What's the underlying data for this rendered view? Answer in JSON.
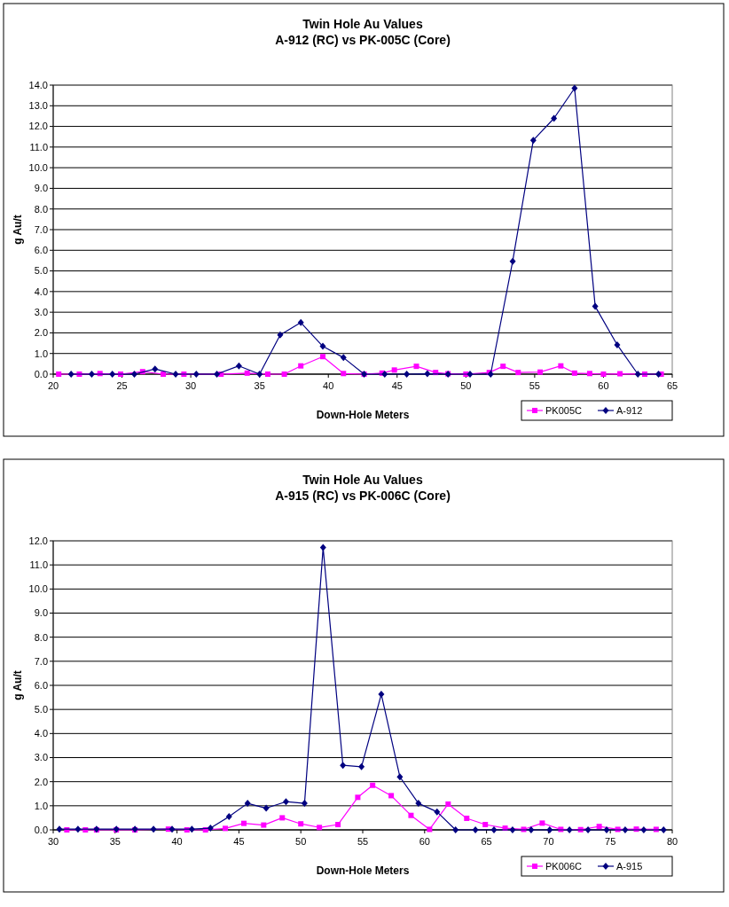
{
  "chart_data": [
    {
      "type": "line",
      "title": "Twin Hole Au Values",
      "subtitle": "A-912 (RC) vs PK-005C (Core)",
      "xlabel": "Down-Hole Meters",
      "ylabel": "g Au/t",
      "xlim": [
        20,
        65
      ],
      "xticks": [
        20,
        25,
        30,
        35,
        40,
        45,
        50,
        55,
        60,
        65
      ],
      "ylim": [
        0,
        14
      ],
      "yticks": [
        {
          "value": 0,
          "label": "0.0"
        },
        {
          "value": 1,
          "label": "1.0"
        },
        {
          "value": 2,
          "label": "2.0"
        },
        {
          "value": 3,
          "label": "3.0"
        },
        {
          "value": 4,
          "label": "4.0"
        },
        {
          "value": 5,
          "label": "5.0"
        },
        {
          "value": 6,
          "label": "6.0"
        },
        {
          "value": 7,
          "label": "7.0"
        },
        {
          "value": 8,
          "label": "8.0"
        },
        {
          "value": 9,
          "label": "9.0"
        },
        {
          "value": 10,
          "label": "10.0"
        },
        {
          "value": 11,
          "label": "11.0"
        },
        {
          "value": 12,
          "label": "12.0"
        },
        {
          "value": 13,
          "label": "13.0"
        },
        {
          "value": 14,
          "label": "14.0"
        }
      ],
      "grid": "y",
      "legend": "bottom right",
      "line_style": "solid",
      "series": [
        {
          "name": "PK005C",
          "color": "#ff00ff",
          "marker": "square",
          "x": [
            20.4,
            21.9,
            23.4,
            24.9,
            26.5,
            28.0,
            29.5,
            32.2,
            34.1,
            35.6,
            36.8,
            38.0,
            39.6,
            41.1,
            42.6,
            43.9,
            44.8,
            46.4,
            47.8,
            48.7,
            50.0,
            51.7,
            52.7,
            53.8,
            55.4,
            56.9,
            57.9,
            59.0,
            60.0,
            61.2,
            63.0,
            64.2
          ],
          "values": [
            0,
            0,
            0.03,
            0,
            0.12,
            0,
            0,
            0,
            0.05,
            0,
            0,
            0.4,
            0.85,
            0.03,
            0,
            0.05,
            0.2,
            0.38,
            0.08,
            0.02,
            0,
            0.08,
            0.38,
            0.08,
            0.1,
            0.4,
            0.05,
            0.03,
            0,
            0.02,
            0,
            0
          ]
        },
        {
          "name": "A-912",
          "color": "#000080",
          "marker": "diamond",
          "x": [
            21.3,
            22.8,
            24.3,
            25.9,
            27.4,
            28.9,
            30.4,
            31.9,
            33.5,
            35.0,
            36.5,
            38.0,
            39.6,
            41.1,
            42.6,
            44.1,
            45.7,
            47.2,
            48.7,
            50.3,
            51.8,
            53.4,
            54.9,
            56.4,
            57.9,
            59.4,
            61.0,
            62.5,
            64.0
          ],
          "values": [
            0,
            0,
            0,
            0,
            0.25,
            0,
            0,
            0,
            0.4,
            0,
            1.9,
            2.5,
            1.35,
            0.8,
            0,
            0,
            0,
            0.02,
            0,
            0,
            0,
            5.47,
            11.33,
            12.39,
            13.85,
            3.28,
            1.42,
            0,
            0
          ]
        }
      ]
    },
    {
      "type": "line",
      "title": "Twin Hole Au Values",
      "subtitle": "A-915 (RC) vs PK-006C (Core)",
      "xlabel": "Down-Hole Meters",
      "ylabel": "g Au/t",
      "xlim": [
        30,
        80
      ],
      "xticks": [
        30,
        35,
        40,
        45,
        50,
        55,
        60,
        65,
        70,
        75,
        80
      ],
      "ylim": [
        0,
        12
      ],
      "yticks": [
        {
          "value": 0,
          "label": "0.0"
        },
        {
          "value": 1,
          "label": "1.0"
        },
        {
          "value": 2,
          "label": "2.0"
        },
        {
          "value": 3,
          "label": "3.0"
        },
        {
          "value": 4,
          "label": "4.0"
        },
        {
          "value": 5,
          "label": "5.0"
        },
        {
          "value": 6,
          "label": "6.0"
        },
        {
          "value": 7,
          "label": "7.0"
        },
        {
          "value": 8,
          "label": "8.0"
        },
        {
          "value": 9,
          "label": "9.0"
        },
        {
          "value": 10,
          "label": "10.0"
        },
        {
          "value": 11,
          "label": "11.0"
        },
        {
          "value": 12,
          "label": "12.0"
        }
      ],
      "grid": "y",
      "legend": "bottom right",
      "line_style": "solid",
      "series": [
        {
          "name": "PK006C",
          "color": "#ff00ff",
          "marker": "square",
          "x": [
            31.1,
            32.6,
            33.5,
            35.1,
            36.6,
            39.3,
            40.8,
            42.3,
            43.9,
            45.4,
            47.0,
            48.5,
            50.0,
            51.5,
            53.0,
            54.6,
            55.8,
            57.3,
            58.9,
            60.4,
            61.9,
            63.4,
            64.9,
            66.5,
            68.0,
            69.5,
            71.0,
            72.6,
            74.1,
            75.6,
            77.1,
            78.7
          ],
          "values": [
            0,
            0,
            0,
            0,
            0,
            0.03,
            0,
            0,
            0.06,
            0.27,
            0.2,
            0.5,
            0.25,
            0.1,
            0.22,
            1.35,
            1.85,
            1.42,
            0.6,
            0.02,
            1.07,
            0.48,
            0.22,
            0.07,
            0.02,
            0.28,
            0.02,
            0.01,
            0.14,
            0.02,
            0.03,
            0.02
          ]
        },
        {
          "name": "A-915",
          "color": "#000080",
          "marker": "diamond",
          "x": [
            30.5,
            32.0,
            33.5,
            35.1,
            36.6,
            38.1,
            39.6,
            41.2,
            42.7,
            44.2,
            45.7,
            47.2,
            48.8,
            50.3,
            51.8,
            53.4,
            54.9,
            56.5,
            58.0,
            59.5,
            61.0,
            62.5,
            64.1,
            65.6,
            67.1,
            68.6,
            70.1,
            71.7,
            73.2,
            74.7,
            76.2,
            77.7,
            79.3
          ],
          "values": [
            0.03,
            0.03,
            0.03,
            0.03,
            0.03,
            0.03,
            0.03,
            0.03,
            0.07,
            0.55,
            1.1,
            0.9,
            1.17,
            1.1,
            11.72,
            2.68,
            2.62,
            5.63,
            2.2,
            1.1,
            0.75,
            0,
            0,
            0,
            0,
            0,
            0,
            0,
            0,
            0,
            0,
            0,
            0
          ]
        }
      ]
    }
  ]
}
